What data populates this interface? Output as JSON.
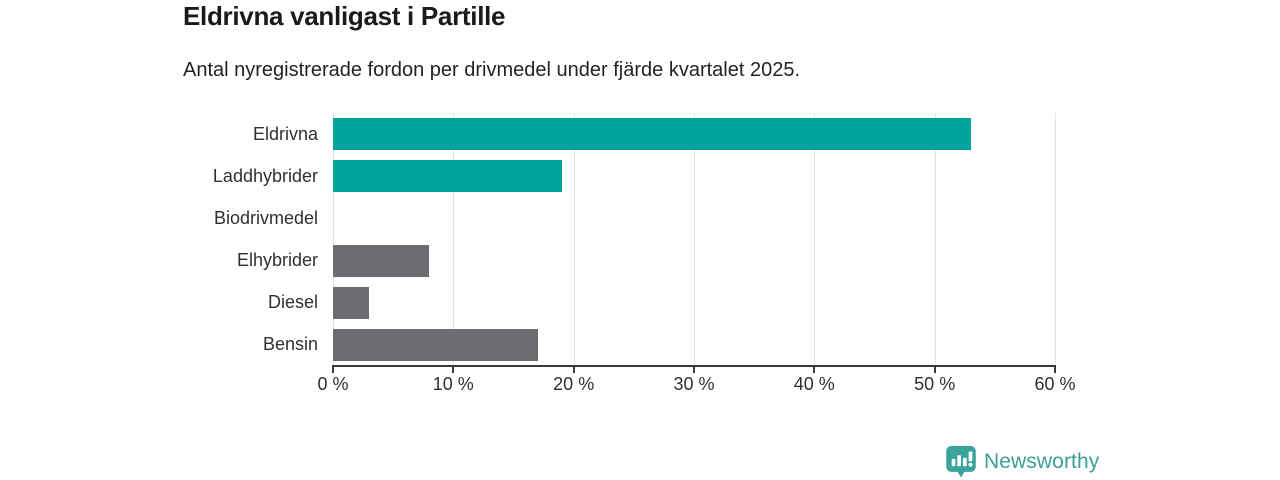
{
  "header": {
    "title": "Eldrivna vanligast i Partille",
    "subtitle": "Antal nyregistrerade fordon per drivmedel under fjärde kvartalet 2025."
  },
  "chart_data": {
    "type": "bar",
    "orientation": "horizontal",
    "title": "Eldrivna vanligast i Partille",
    "subtitle": "Antal nyregistrerade fordon per drivmedel under fjärde kvartalet 2025.",
    "categories": [
      "Eldrivna",
      "Laddhybrider",
      "Biodrivmedel",
      "Elhybrider",
      "Diesel",
      "Bensin"
    ],
    "values": [
      53,
      19,
      0,
      8,
      3,
      17
    ],
    "unit": "%",
    "bar_colors": [
      "#00a49c",
      "#00a49c",
      "#6c6d72",
      "#6c6d72",
      "#6c6d72",
      "#6c6d72"
    ],
    "xlim": [
      0,
      60
    ],
    "x_ticks": [
      0,
      10,
      20,
      30,
      40,
      50,
      60
    ],
    "x_tick_labels": [
      "0 %",
      "10 %",
      "20 %",
      "30 %",
      "40 %",
      "50 %",
      "60 %"
    ],
    "grid": true,
    "legend": false,
    "ylabel": "",
    "xlabel": ""
  },
  "branding": {
    "logo_text": "Newsworthy",
    "logo_icon": "newsworthy-bar-chart-bubble-icon",
    "logo_color": "#3d9e98",
    "icon_color": "#3aa39b"
  },
  "colors": {
    "highlight_teal": "#00a49c",
    "bar_gray": "#6c6d72",
    "axis": "#3a3a3a",
    "gridline": "#e4e4e4",
    "text": "#2f3033",
    "title_text": "#1a1a1a",
    "background": "#ffffff"
  }
}
